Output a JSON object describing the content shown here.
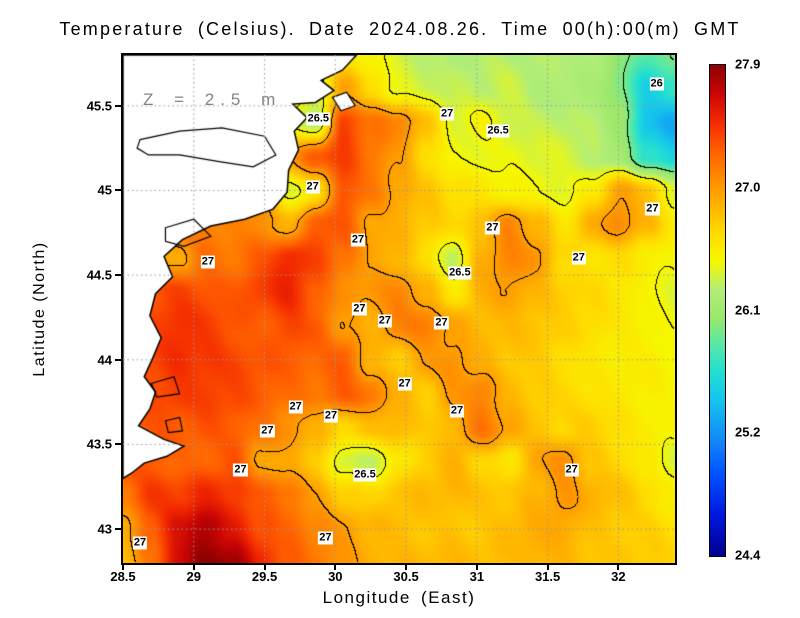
{
  "chart_data": {
    "type": "heatmap",
    "title": "Temperature (Celsius). Date 2024.08.26. Time 00(h):00(m) GMT",
    "annotation": "Z = 2.5 m",
    "xlabel": "Longitude (East)",
    "ylabel": "Latitude (North)",
    "units": "Celsius",
    "xlim": [
      28.5,
      32.4
    ],
    "ylim": [
      42.8,
      45.8
    ],
    "x_ticks": [
      28.5,
      29,
      29.5,
      30,
      30.5,
      31,
      31.5,
      32
    ],
    "x_tick_labels": [
      "28.5",
      "29",
      "29.5",
      "30",
      "30.5",
      "31",
      "31.5",
      "32"
    ],
    "y_ticks": [
      43,
      43.5,
      44,
      44.5,
      45,
      45.5
    ],
    "y_tick_labels": [
      "43",
      "43.5",
      "44",
      "44.5",
      "45",
      "45.5"
    ],
    "grid": true,
    "grid_color": "#9a9a9a",
    "annotation_color": "#848484",
    "land_color": "#ffffff",
    "coastline_color": "#000000",
    "contour_levels": [
      26,
      26.5,
      27
    ],
    "colorbar": {
      "min": 24.4,
      "max": 27.9,
      "tick_values": [
        27.9,
        27.0,
        26.1,
        25.2,
        24.4
      ],
      "tick_labels": [
        "27.9",
        "27.0",
        "26.1",
        "25.2",
        "24.4"
      ],
      "palette": [
        {
          "t": 0.0,
          "c": "#000090"
        },
        {
          "t": 0.086,
          "c": "#0018E0"
        },
        {
          "t": 0.171,
          "c": "#0055FF"
        },
        {
          "t": 0.229,
          "c": "#1283F8"
        },
        {
          "t": 0.314,
          "c": "#15C2EE"
        },
        {
          "t": 0.371,
          "c": "#20DDD5"
        },
        {
          "t": 0.429,
          "c": "#55E8A8"
        },
        {
          "t": 0.486,
          "c": "#9BE86B"
        },
        {
          "t": 0.543,
          "c": "#B2EE77"
        },
        {
          "t": 0.6,
          "c": "#F6F800"
        },
        {
          "t": 0.657,
          "c": "#FFDC00"
        },
        {
          "t": 0.714,
          "c": "#FFB300"
        },
        {
          "t": 0.771,
          "c": "#FF8A00"
        },
        {
          "t": 0.829,
          "c": "#FF5C00"
        },
        {
          "t": 0.886,
          "c": "#F22800"
        },
        {
          "t": 0.943,
          "c": "#C90505"
        },
        {
          "t": 1.0,
          "c": "#8F0000"
        }
      ]
    },
    "contour_labels": [
      {
        "lon": 29.88,
        "lat": 45.42,
        "text": "26.5"
      },
      {
        "lon": 29.84,
        "lat": 45.02,
        "text": "27"
      },
      {
        "lon": 30.79,
        "lat": 45.45,
        "text": "27"
      },
      {
        "lon": 31.15,
        "lat": 45.35,
        "text": "26.5"
      },
      {
        "lon": 32.27,
        "lat": 45.63,
        "text": "26"
      },
      {
        "lon": 32.24,
        "lat": 44.89,
        "text": "27"
      },
      {
        "lon": 31.11,
        "lat": 44.78,
        "text": "27"
      },
      {
        "lon": 31.72,
        "lat": 44.6,
        "text": "27"
      },
      {
        "lon": 30.88,
        "lat": 44.51,
        "text": "26.5"
      },
      {
        "lon": 29.1,
        "lat": 44.58,
        "text": "27"
      },
      {
        "lon": 30.16,
        "lat": 44.71,
        "text": "27"
      },
      {
        "lon": 30.17,
        "lat": 44.3,
        "text": "27"
      },
      {
        "lon": 30.35,
        "lat": 44.23,
        "text": "27"
      },
      {
        "lon": 30.75,
        "lat": 44.22,
        "text": "27"
      },
      {
        "lon": 30.49,
        "lat": 43.86,
        "text": "27"
      },
      {
        "lon": 30.86,
        "lat": 43.7,
        "text": "27"
      },
      {
        "lon": 29.72,
        "lat": 43.72,
        "text": "27"
      },
      {
        "lon": 29.97,
        "lat": 43.67,
        "text": "27"
      },
      {
        "lon": 29.52,
        "lat": 43.58,
        "text": "27"
      },
      {
        "lon": 29.33,
        "lat": 43.35,
        "text": "27"
      },
      {
        "lon": 30.21,
        "lat": 43.32,
        "text": "26.5"
      },
      {
        "lon": 31.67,
        "lat": 43.35,
        "text": "27"
      },
      {
        "lon": 28.62,
        "lat": 42.92,
        "text": "27"
      },
      {
        "lon": 29.93,
        "lat": 42.95,
        "text": "27"
      }
    ],
    "field": {
      "lons": [
        28.5,
        28.695,
        28.89,
        29.085,
        29.28,
        29.475,
        29.67,
        29.865,
        30.06,
        30.255,
        30.45,
        30.645,
        30.84,
        31.035,
        31.23,
        31.425,
        31.62,
        31.815,
        32.01,
        32.205,
        32.4
      ],
      "lats": [
        45.8,
        45.6,
        45.4,
        45.2,
        45.0,
        44.8,
        44.6,
        44.4,
        44.2,
        44.0,
        43.8,
        43.6,
        43.4,
        43.2,
        43.0,
        42.8
      ],
      "values": [
        [
          27.0,
          27.0,
          27.0,
          26.9,
          26.8,
          26.8,
          26.7,
          26.6,
          26.6,
          26.5,
          26.4,
          26.35,
          26.3,
          26.3,
          26.3,
          26.3,
          26.3,
          26.25,
          26.1,
          25.9,
          26.05
        ],
        [
          27.0,
          27.0,
          27.0,
          26.9,
          26.8,
          26.7,
          26.6,
          26.4,
          27.0,
          26.7,
          26.45,
          26.4,
          26.35,
          26.3,
          26.35,
          26.3,
          26.3,
          26.25,
          26.0,
          25.6,
          25.75
        ],
        [
          27.1,
          27.1,
          27.05,
          27.0,
          26.9,
          26.8,
          26.5,
          26.3,
          27.45,
          27.2,
          27.1,
          26.8,
          26.45,
          26.55,
          26.4,
          26.35,
          26.35,
          26.3,
          26.1,
          25.5,
          25.4
        ],
        [
          27.15,
          27.15,
          27.1,
          27.05,
          26.95,
          26.9,
          27.0,
          27.3,
          27.4,
          27.2,
          27.0,
          26.7,
          26.5,
          26.5,
          26.45,
          26.4,
          26.4,
          26.35,
          26.2,
          25.75,
          25.6
        ],
        [
          27.2,
          27.2,
          27.15,
          27.1,
          27.05,
          27.0,
          26.45,
          26.6,
          27.35,
          27.2,
          27.0,
          26.8,
          26.65,
          26.6,
          26.55,
          26.5,
          26.45,
          26.6,
          27.0,
          26.8,
          26.4
        ],
        [
          27.2,
          27.25,
          27.2,
          27.15,
          27.1,
          27.1,
          26.9,
          27.35,
          27.3,
          26.95,
          26.9,
          26.8,
          26.7,
          26.85,
          27.15,
          26.9,
          26.6,
          26.9,
          27.1,
          26.9,
          26.6
        ],
        [
          27.25,
          26.8,
          26.95,
          27.25,
          27.2,
          27.3,
          27.5,
          27.4,
          27.2,
          26.95,
          26.9,
          26.7,
          26.35,
          26.9,
          27.1,
          27.05,
          26.7,
          26.65,
          26.7,
          26.6,
          26.5
        ],
        [
          27.3,
          27.35,
          27.4,
          27.35,
          27.3,
          27.4,
          27.5,
          27.3,
          27.1,
          27.05,
          27.1,
          26.9,
          26.6,
          26.9,
          27.0,
          26.9,
          26.8,
          26.7,
          26.6,
          26.5,
          26.45
        ],
        [
          27.35,
          27.4,
          27.45,
          27.4,
          27.35,
          27.3,
          27.4,
          27.3,
          27.0,
          26.9,
          27.1,
          27.15,
          27.0,
          26.9,
          26.85,
          26.8,
          26.75,
          26.7,
          26.6,
          26.55,
          26.5
        ],
        [
          27.3,
          27.4,
          27.5,
          27.45,
          27.4,
          27.35,
          27.3,
          27.2,
          27.3,
          26.9,
          26.8,
          27.0,
          27.05,
          26.9,
          26.8,
          26.75,
          26.7,
          26.65,
          26.6,
          26.55,
          26.5
        ],
        [
          27.3,
          27.4,
          27.45,
          27.4,
          27.35,
          27.3,
          27.25,
          27.2,
          27.3,
          27.2,
          26.9,
          26.75,
          27.0,
          27.15,
          26.9,
          26.8,
          26.7,
          26.65,
          26.6,
          26.55,
          26.5
        ],
        [
          27.35,
          27.3,
          27.3,
          27.35,
          27.3,
          27.2,
          27.1,
          26.9,
          26.7,
          26.8,
          26.9,
          26.8,
          26.9,
          27.2,
          27.0,
          26.8,
          26.7,
          26.75,
          26.7,
          26.6,
          26.55
        ],
        [
          27.4,
          27.3,
          27.25,
          27.3,
          27.35,
          26.95,
          26.9,
          26.8,
          26.4,
          26.35,
          26.6,
          26.8,
          26.9,
          26.7,
          26.6,
          27.0,
          27.1,
          26.8,
          26.7,
          26.6,
          26.4
        ],
        [
          27.2,
          27.45,
          27.4,
          27.5,
          27.45,
          27.3,
          27.2,
          27.0,
          26.8,
          26.7,
          26.8,
          26.85,
          26.9,
          26.85,
          26.8,
          26.9,
          27.05,
          26.9,
          26.8,
          26.7,
          26.6
        ],
        [
          26.9,
          27.3,
          27.6,
          27.8,
          27.6,
          27.4,
          27.25,
          27.1,
          27.0,
          26.9,
          26.85,
          26.8,
          26.85,
          26.8,
          26.85,
          26.9,
          26.95,
          26.85,
          26.8,
          26.75,
          26.7
        ],
        [
          26.85,
          27.2,
          27.7,
          27.9,
          27.85,
          27.5,
          27.3,
          27.15,
          27.05,
          26.95,
          26.9,
          26.85,
          26.85,
          26.85,
          26.85,
          26.9,
          26.9,
          26.85,
          26.8,
          26.75,
          26.7
        ]
      ]
    },
    "land": {
      "coast": [
        [
          28.5,
          45.8
        ],
        [
          29.2,
          45.8
        ],
        [
          29.75,
          45.8
        ],
        [
          30.15,
          45.8
        ],
        [
          30.05,
          45.71
        ],
        [
          29.9,
          45.65
        ],
        [
          29.99,
          45.59
        ],
        [
          29.86,
          45.52
        ],
        [
          29.7,
          45.51
        ],
        [
          29.8,
          45.43
        ],
        [
          29.71,
          45.35
        ],
        [
          29.74,
          45.24
        ],
        [
          29.67,
          45.12
        ],
        [
          29.66,
          44.99
        ],
        [
          29.56,
          44.89
        ],
        [
          29.36,
          44.83
        ],
        [
          29.12,
          44.79
        ],
        [
          28.92,
          44.71
        ],
        [
          28.79,
          44.61
        ],
        [
          28.85,
          44.49
        ],
        [
          28.73,
          44.39
        ],
        [
          28.69,
          44.26
        ],
        [
          28.77,
          44.13
        ],
        [
          28.71,
          44.01
        ],
        [
          28.65,
          43.9
        ],
        [
          28.73,
          43.81
        ],
        [
          28.69,
          43.71
        ],
        [
          28.61,
          43.61
        ],
        [
          28.79,
          43.53
        ],
        [
          28.93,
          43.49
        ],
        [
          28.81,
          43.43
        ],
        [
          28.65,
          43.39
        ],
        [
          28.56,
          43.33
        ],
        [
          28.5,
          43.3
        ]
      ],
      "lakes": [
        [
          [
            28.62,
            45.3
          ],
          [
            28.9,
            45.35
          ],
          [
            29.2,
            45.37
          ],
          [
            29.5,
            45.32
          ],
          [
            29.58,
            45.21
          ],
          [
            29.42,
            45.14
          ],
          [
            29.18,
            45.17
          ],
          [
            28.9,
            45.21
          ],
          [
            28.68,
            45.21
          ],
          [
            28.6,
            45.25
          ]
        ],
        [
          [
            28.8,
            44.78
          ],
          [
            29.0,
            44.83
          ],
          [
            29.12,
            44.73
          ],
          [
            28.93,
            44.67
          ],
          [
            28.8,
            44.7
          ]
        ],
        [
          [
            28.7,
            43.86
          ],
          [
            28.86,
            43.9
          ],
          [
            28.9,
            43.8
          ],
          [
            28.74,
            43.78
          ]
        ],
        [
          [
            28.8,
            43.64
          ],
          [
            28.9,
            43.66
          ],
          [
            28.92,
            43.58
          ],
          [
            28.82,
            43.57
          ]
        ]
      ],
      "islands": [
        [
          [
            29.98,
            45.55
          ],
          [
            30.08,
            45.58
          ],
          [
            30.14,
            45.5
          ],
          [
            30.04,
            45.47
          ]
        ]
      ]
    }
  }
}
